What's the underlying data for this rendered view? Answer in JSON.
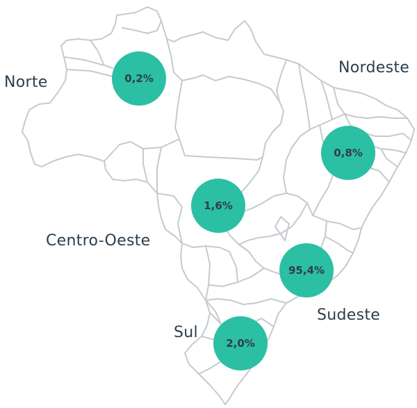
{
  "colors": {
    "bubble": "#2bbfa4",
    "outline": "#c4cacf",
    "label": "#2c3e4c"
  },
  "regions": [
    {
      "id": "norte",
      "name": "Norte",
      "value": "0,2%"
    },
    {
      "id": "nordeste",
      "name": "Nordeste",
      "value": "0,8%"
    },
    {
      "id": "centro-oeste",
      "name": "Centro-Oeste",
      "value": "1,6%"
    },
    {
      "id": "sudeste",
      "name": "Sudeste",
      "value": "95,4%"
    },
    {
      "id": "sul",
      "name": "Sul",
      "value": "2,0%"
    }
  ]
}
